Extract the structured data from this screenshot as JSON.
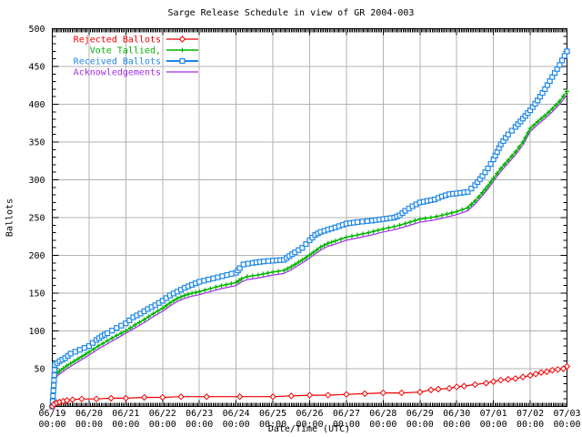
{
  "chart_data": {
    "type": "line",
    "title": "Sarge Release Schedule in view of GR 2004-003",
    "xlabel": "Date/Time (UTC)",
    "ylabel": "Ballots",
    "ylim": [
      0,
      500
    ],
    "ytick_step": 50,
    "yticks": [
      0,
      50,
      100,
      150,
      200,
      250,
      300,
      350,
      400,
      450,
      500
    ],
    "xlim_days": [
      0,
      14
    ],
    "xticks": [
      "06/19",
      "06/20",
      "06/21",
      "06/22",
      "06/23",
      "06/24",
      "06/25",
      "06/26",
      "06/27",
      "06/28",
      "06/29",
      "06/30",
      "07/01",
      "07/02",
      "07/03"
    ],
    "xtick_time": "00:00",
    "grid": true,
    "legend_position": "top-left",
    "background_color": "#ffffff",
    "axis_color": "#000000",
    "grid_color": "#b3b3b3",
    "text_color": "#000000",
    "series": [
      {
        "name": "Rejected Ballots",
        "color": "#ee0000",
        "marker": "diamond",
        "points": [
          [
            0,
            0
          ],
          [
            0.05,
            3
          ],
          [
            0.12,
            5
          ],
          [
            0.2,
            6
          ],
          [
            0.3,
            7
          ],
          [
            0.4,
            8
          ],
          [
            0.55,
            9
          ],
          [
            0.8,
            10
          ],
          [
            1.2,
            10
          ],
          [
            1.6,
            11
          ],
          [
            2.0,
            11
          ],
          [
            2.5,
            12
          ],
          [
            3.0,
            12
          ],
          [
            3.5,
            13
          ],
          [
            4.2,
            13
          ],
          [
            5.1,
            13
          ],
          [
            6.0,
            13
          ],
          [
            6.5,
            14
          ],
          [
            7.0,
            15
          ],
          [
            7.5,
            15
          ],
          [
            8.0,
            16
          ],
          [
            8.5,
            17
          ],
          [
            9.0,
            18
          ],
          [
            9.5,
            18
          ],
          [
            10.0,
            19
          ],
          [
            10.3,
            22
          ],
          [
            10.5,
            23
          ],
          [
            10.8,
            24
          ],
          [
            11.0,
            26
          ],
          [
            11.2,
            27
          ],
          [
            11.5,
            29
          ],
          [
            11.8,
            31
          ],
          [
            12.0,
            33
          ],
          [
            12.2,
            35
          ],
          [
            12.4,
            36
          ],
          [
            12.6,
            37
          ],
          [
            12.8,
            39
          ],
          [
            13.0,
            41
          ],
          [
            13.15,
            43
          ],
          [
            13.3,
            45
          ],
          [
            13.45,
            46
          ],
          [
            13.6,
            48
          ],
          [
            13.75,
            49
          ],
          [
            13.9,
            50
          ],
          [
            14.0,
            53
          ]
        ]
      },
      {
        "name": "Vote Tallied,",
        "color": "#00b400",
        "marker": "plus",
        "points": [
          [
            0,
            0
          ],
          [
            0.05,
            40
          ],
          [
            0.2,
            47
          ],
          [
            0.4,
            54
          ],
          [
            0.6,
            60
          ],
          [
            0.8,
            66
          ],
          [
            1.0,
            72
          ],
          [
            1.25,
            80
          ],
          [
            1.5,
            87
          ],
          [
            1.75,
            94
          ],
          [
            2.0,
            100
          ],
          [
            2.25,
            108
          ],
          [
            2.5,
            115
          ],
          [
            2.75,
            123
          ],
          [
            3.0,
            130
          ],
          [
            3.2,
            137
          ],
          [
            3.4,
            143
          ],
          [
            3.6,
            147
          ],
          [
            3.8,
            150
          ],
          [
            4.0,
            152
          ],
          [
            4.3,
            156
          ],
          [
            4.6,
            160
          ],
          [
            5.0,
            164
          ],
          [
            5.15,
            169
          ],
          [
            5.3,
            172
          ],
          [
            5.6,
            174
          ],
          [
            6.0,
            178
          ],
          [
            6.3,
            180
          ],
          [
            6.5,
            185
          ],
          [
            6.7,
            191
          ],
          [
            6.9,
            197
          ],
          [
            7.1,
            204
          ],
          [
            7.3,
            211
          ],
          [
            7.5,
            216
          ],
          [
            7.7,
            219
          ],
          [
            8.0,
            224
          ],
          [
            8.3,
            227
          ],
          [
            8.6,
            230
          ],
          [
            9.0,
            235
          ],
          [
            9.3,
            238
          ],
          [
            9.6,
            242
          ],
          [
            10.0,
            248
          ],
          [
            10.3,
            250
          ],
          [
            10.6,
            253
          ],
          [
            11.0,
            258
          ],
          [
            11.3,
            263
          ],
          [
            11.5,
            272
          ],
          [
            11.7,
            283
          ],
          [
            11.85,
            292
          ],
          [
            12.0,
            302
          ],
          [
            12.2,
            315
          ],
          [
            12.4,
            326
          ],
          [
            12.6,
            337
          ],
          [
            12.8,
            350
          ],
          [
            13.0,
            368
          ],
          [
            13.2,
            377
          ],
          [
            13.4,
            385
          ],
          [
            13.6,
            394
          ],
          [
            13.8,
            404
          ],
          [
            14.0,
            417
          ]
        ]
      },
      {
        "name": "Received Ballots",
        "color": "#1e87e5",
        "marker": "square",
        "points": [
          [
            0,
            0
          ],
          [
            0.04,
            28
          ],
          [
            0.07,
            55
          ],
          [
            0.2,
            60
          ],
          [
            0.35,
            64
          ],
          [
            0.5,
            70
          ],
          [
            0.75,
            75
          ],
          [
            1.0,
            80
          ],
          [
            1.2,
            88
          ],
          [
            1.35,
            93
          ],
          [
            1.5,
            97
          ],
          [
            1.75,
            104
          ],
          [
            2.0,
            110
          ],
          [
            2.2,
            118
          ],
          [
            2.4,
            123
          ],
          [
            2.6,
            129
          ],
          [
            2.8,
            134
          ],
          [
            3.0,
            140
          ],
          [
            3.2,
            147
          ],
          [
            3.4,
            152
          ],
          [
            3.6,
            157
          ],
          [
            3.8,
            161
          ],
          [
            4.0,
            165
          ],
          [
            4.25,
            168
          ],
          [
            4.5,
            171
          ],
          [
            4.75,
            174
          ],
          [
            5.0,
            177
          ],
          [
            5.1,
            183
          ],
          [
            5.2,
            188
          ],
          [
            5.45,
            190
          ],
          [
            5.75,
            192
          ],
          [
            6.0,
            193
          ],
          [
            6.3,
            194
          ],
          [
            6.45,
            199
          ],
          [
            6.6,
            204
          ],
          [
            6.8,
            210
          ],
          [
            7.0,
            220
          ],
          [
            7.15,
            227
          ],
          [
            7.3,
            231
          ],
          [
            7.5,
            234
          ],
          [
            7.7,
            237
          ],
          [
            8.0,
            242
          ],
          [
            8.3,
            244
          ],
          [
            8.7,
            246
          ],
          [
            9.0,
            248
          ],
          [
            9.3,
            250
          ],
          [
            9.45,
            253
          ],
          [
            9.6,
            259
          ],
          [
            9.8,
            265
          ],
          [
            10.0,
            270
          ],
          [
            10.2,
            272
          ],
          [
            10.4,
            274
          ],
          [
            10.6,
            278
          ],
          [
            10.8,
            281
          ],
          [
            11.0,
            282
          ],
          [
            11.3,
            284
          ],
          [
            11.5,
            293
          ],
          [
            11.7,
            305
          ],
          [
            11.85,
            315
          ],
          [
            12.0,
            327
          ],
          [
            12.2,
            347
          ],
          [
            12.4,
            360
          ],
          [
            12.6,
            370
          ],
          [
            12.8,
            381
          ],
          [
            13.0,
            392
          ],
          [
            13.2,
            405
          ],
          [
            13.4,
            420
          ],
          [
            13.6,
            436
          ],
          [
            13.8,
            452
          ],
          [
            14.0,
            470
          ]
        ]
      },
      {
        "name": "Acknowledgements",
        "color": "#a52ce8",
        "marker": "none",
        "points": [
          [
            0,
            0
          ],
          [
            0.05,
            36
          ],
          [
            0.2,
            43
          ],
          [
            0.4,
            50
          ],
          [
            0.6,
            56
          ],
          [
            0.8,
            62
          ],
          [
            1.0,
            68
          ],
          [
            1.25,
            76
          ],
          [
            1.5,
            83
          ],
          [
            1.75,
            90
          ],
          [
            2.0,
            97
          ],
          [
            2.25,
            104
          ],
          [
            2.5,
            111
          ],
          [
            2.75,
            119
          ],
          [
            3.0,
            126
          ],
          [
            3.2,
            133
          ],
          [
            3.4,
            139
          ],
          [
            3.6,
            143
          ],
          [
            3.8,
            146
          ],
          [
            4.0,
            148
          ],
          [
            4.3,
            152
          ],
          [
            4.6,
            156
          ],
          [
            5.0,
            160
          ],
          [
            5.15,
            165
          ],
          [
            5.3,
            168
          ],
          [
            5.6,
            170
          ],
          [
            6.0,
            174
          ],
          [
            6.3,
            176
          ],
          [
            6.5,
            181
          ],
          [
            6.7,
            187
          ],
          [
            6.9,
            193
          ],
          [
            7.1,
            200
          ],
          [
            7.3,
            207
          ],
          [
            7.5,
            212
          ],
          [
            7.7,
            215
          ],
          [
            8.0,
            220
          ],
          [
            8.3,
            223
          ],
          [
            8.6,
            226
          ],
          [
            9.0,
            231
          ],
          [
            9.3,
            234
          ],
          [
            9.6,
            238
          ],
          [
            10.0,
            244
          ],
          [
            10.3,
            246
          ],
          [
            10.6,
            249
          ],
          [
            11.0,
            254
          ],
          [
            11.3,
            259
          ],
          [
            11.5,
            268
          ],
          [
            11.7,
            279
          ],
          [
            11.85,
            288
          ],
          [
            12.0,
            298
          ],
          [
            12.2,
            311
          ],
          [
            12.4,
            322
          ],
          [
            12.6,
            333
          ],
          [
            12.8,
            346
          ],
          [
            13.0,
            364
          ],
          [
            13.2,
            373
          ],
          [
            13.4,
            381
          ],
          [
            13.6,
            390
          ],
          [
            13.8,
            400
          ],
          [
            14.0,
            412
          ]
        ]
      }
    ]
  }
}
